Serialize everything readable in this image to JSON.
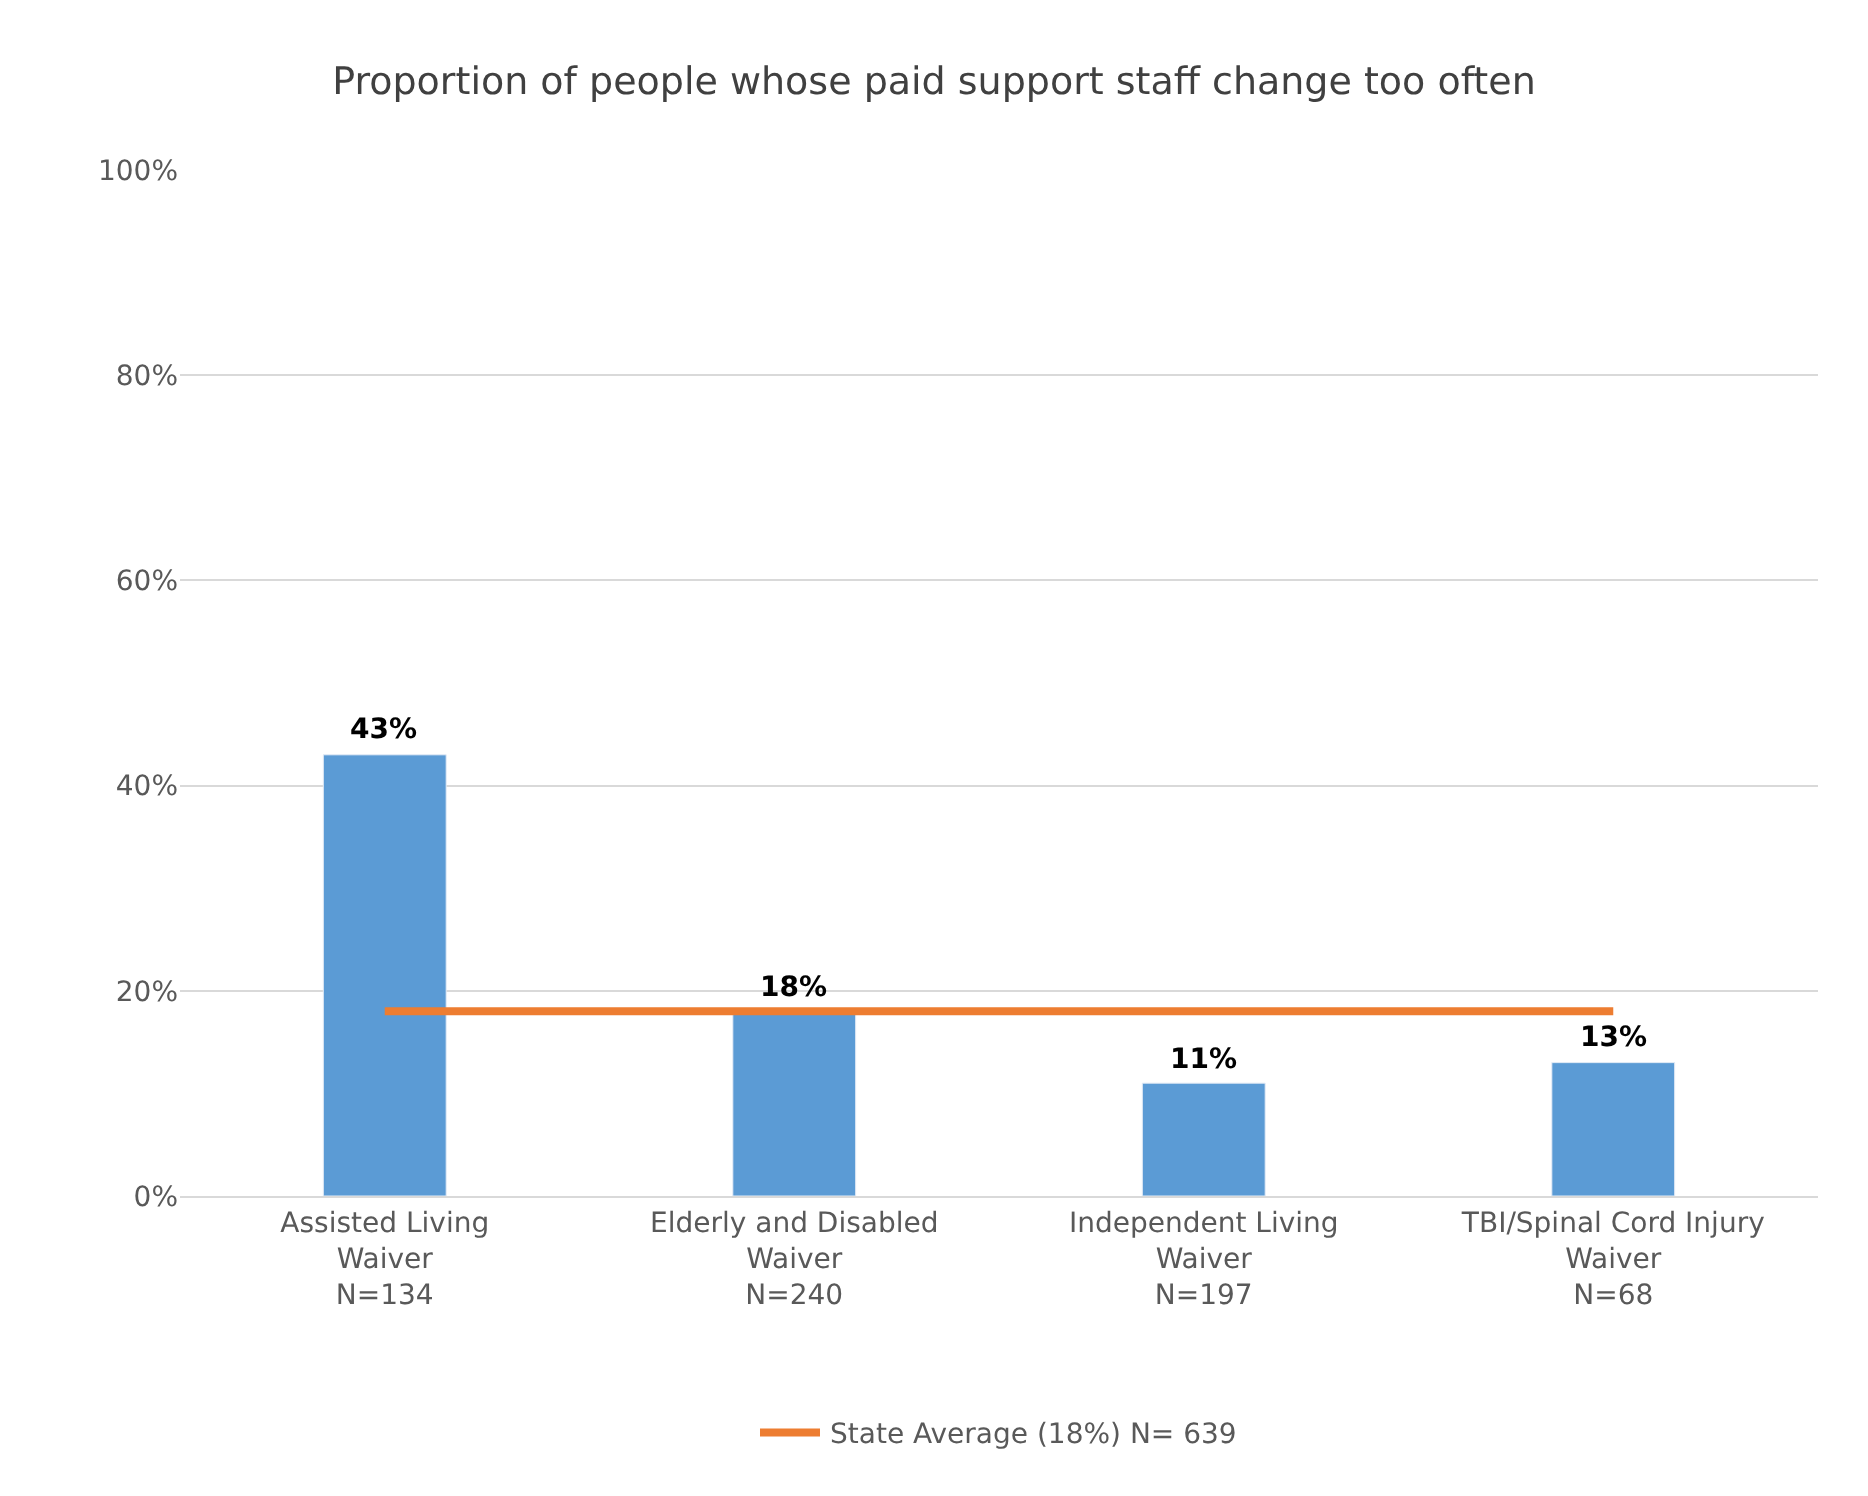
{
  "chart_data": {
    "type": "bar",
    "title": "Proportion of people whose paid support staff change too often",
    "categories": [
      "Assisted Living\nWaiver\nN=134",
      "Elderly and Disabled\nWaiver\nN=240",
      "Independent Living\nWaiver\nN=197",
      "TBI/Spinal Cord Injury\nWaiver\nN=68"
    ],
    "series": [
      {
        "type": "bar",
        "color": "#5b9bd5",
        "values": [
          43,
          18,
          11,
          13
        ],
        "value_labels": [
          "43%",
          "18%",
          "11%",
          "13%"
        ]
      },
      {
        "type": "line",
        "name": "State Average (18%) N= 639",
        "color": "#ed7d31",
        "values": [
          18,
          18,
          18,
          18
        ]
      }
    ],
    "ylim": [
      0,
      100
    ],
    "yticks": [
      {
        "value": 0,
        "label": "0%"
      },
      {
        "value": 20,
        "label": "20%"
      },
      {
        "value": 40,
        "label": "40%"
      },
      {
        "value": 60,
        "label": "60%"
      },
      {
        "value": 80,
        "label": "80%"
      },
      {
        "value": 100,
        "label": "100%"
      }
    ],
    "grid": "y",
    "legend": "bottom",
    "marker": "none"
  }
}
